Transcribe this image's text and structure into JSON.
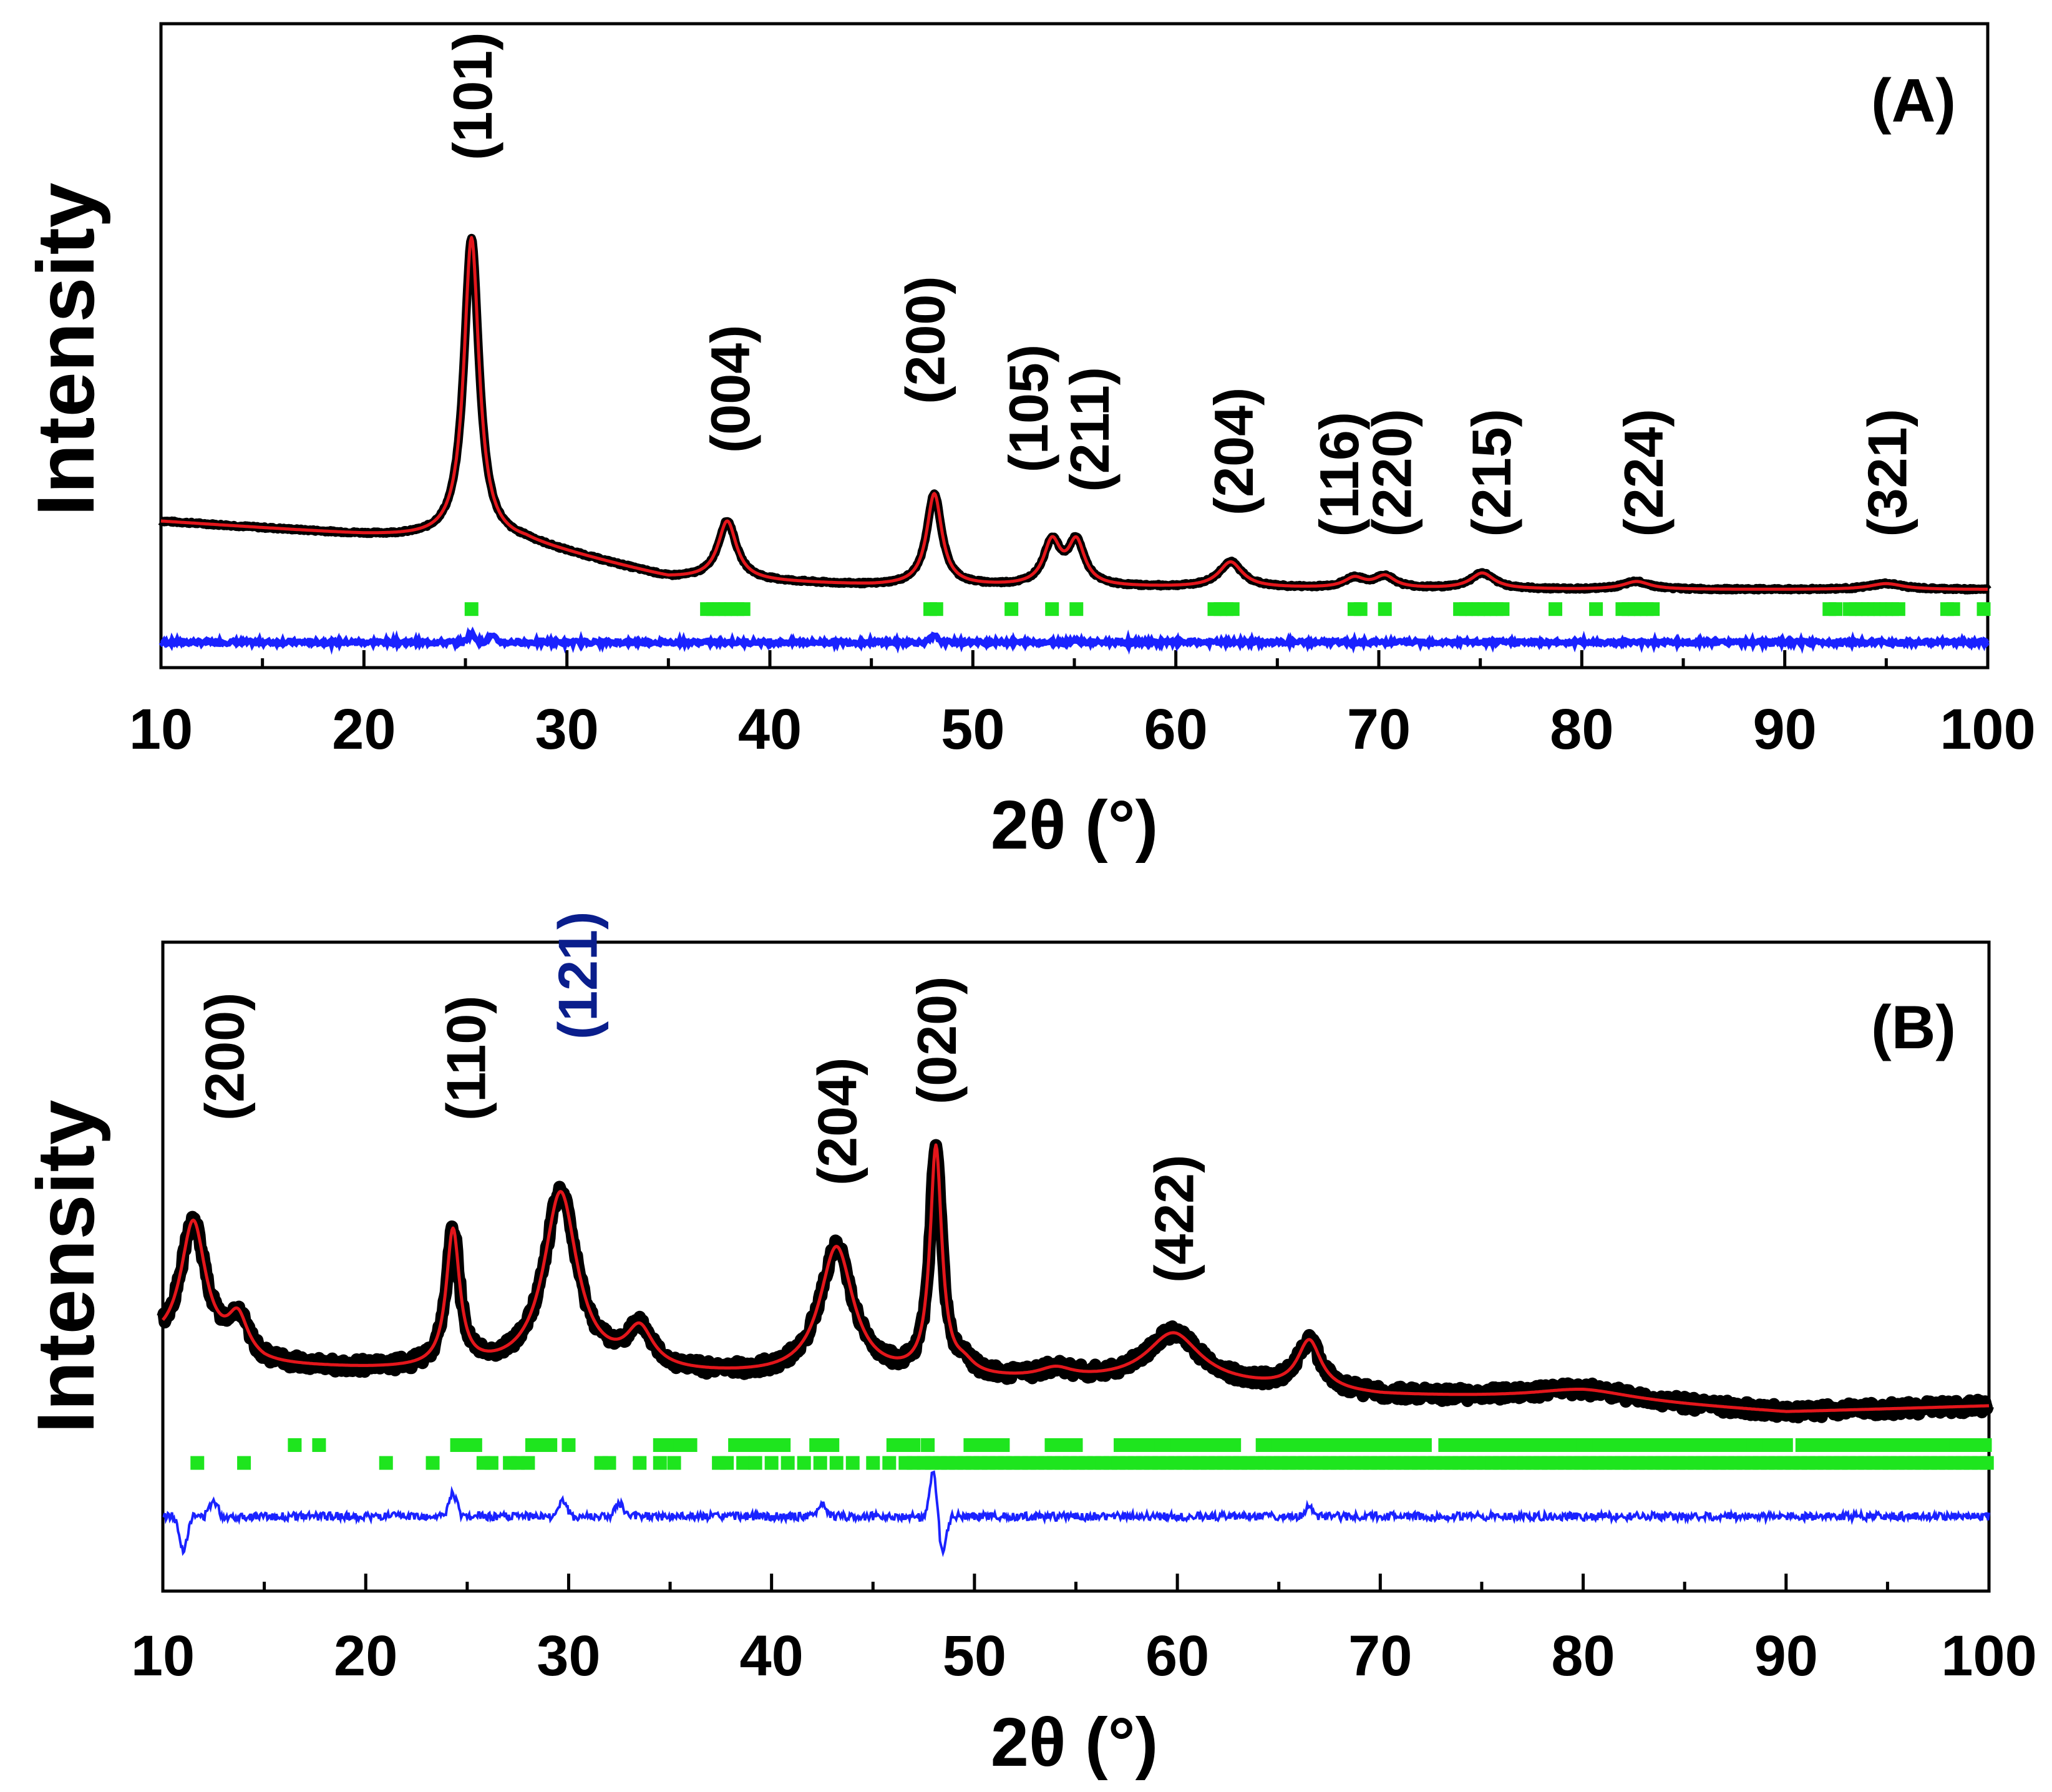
{
  "chart_data": [
    {
      "type": "line",
      "panel_label": "(A)",
      "xlabel": "2θ (°)",
      "ylabel": "Intensity",
      "xlim": [
        10,
        100
      ],
      "ylim": [
        -0.4,
        2.9
      ],
      "x_ticks": [
        10,
        20,
        30,
        40,
        50,
        60,
        70,
        80,
        90,
        100
      ],
      "background": [
        [
          10,
          0.35
        ],
        [
          20,
          0.28
        ],
        [
          28,
          0.24
        ],
        [
          35,
          0.06
        ],
        [
          45,
          0.02
        ],
        [
          60,
          0.01
        ],
        [
          80,
          0.0
        ],
        [
          100,
          0.0
        ]
      ],
      "peaks": [
        {
          "hkl": "(101)",
          "pos": 25.3,
          "height": 1.55,
          "width": 0.45
        },
        {
          "hkl": "(004)",
          "pos": 37.9,
          "height": 0.3,
          "width": 0.55
        },
        {
          "hkl": "(200)",
          "pos": 48.1,
          "height": 0.47,
          "width": 0.45
        },
        {
          "hkl": "(105)",
          "pos": 53.9,
          "height": 0.22,
          "width": 0.5
        },
        {
          "hkl": "(211)",
          "pos": 55.1,
          "height": 0.22,
          "width": 0.5
        },
        {
          "hkl": "(204)",
          "pos": 62.7,
          "height": 0.13,
          "width": 0.7
        },
        {
          "hkl": "(116)",
          "pos": 68.8,
          "height": 0.05,
          "width": 0.6
        },
        {
          "hkl": "(220)",
          "pos": 70.3,
          "height": 0.06,
          "width": 0.6
        },
        {
          "hkl": "(215)",
          "pos": 75.1,
          "height": 0.08,
          "width": 0.7
        },
        {
          "hkl": "(224)",
          "pos": 82.7,
          "height": 0.04,
          "width": 0.8
        },
        {
          "hkl": "(321)",
          "pos": 95.0,
          "height": 0.03,
          "width": 1.0
        }
      ],
      "labels": [
        {
          "text": "(101)",
          "x": 25.3,
          "y": 2.2,
          "color": "#000000"
        },
        {
          "text": "(004)",
          "x": 38.0,
          "y": 0.7,
          "color": "#000000"
        },
        {
          "text": "(200)",
          "x": 47.6,
          "y": 0.95,
          "color": "#000000"
        },
        {
          "text": "(105)",
          "x": 52.7,
          "y": 0.6,
          "color": "#000000"
        },
        {
          "text": "(211)",
          "x": 55.7,
          "y": 0.5,
          "color": "#000000"
        },
        {
          "text": "(204)",
          "x": 62.8,
          "y": 0.38,
          "color": "#000000"
        },
        {
          "text": "(116)",
          "x": 68.0,
          "y": 0.27,
          "color": "#000000"
        },
        {
          "text": "(220)",
          "x": 70.6,
          "y": 0.27,
          "color": "#000000"
        },
        {
          "text": "(215)",
          "x": 75.5,
          "y": 0.27,
          "color": "#000000"
        },
        {
          "text": "(224)",
          "x": 83.0,
          "y": 0.27,
          "color": "#000000"
        },
        {
          "text": "(321)",
          "x": 95.0,
          "y": 0.27,
          "color": "#000000"
        }
      ],
      "bragg_rows": [
        {
          "y": -0.1,
          "positions": [
            25.3,
            36.9,
            37.2,
            37.5,
            37.8,
            38.1,
            38.4,
            38.7,
            47.9,
            48.2,
            51.9,
            53.9,
            55.1,
            61.9,
            62.2,
            62.5,
            62.8,
            68.8,
            69.1,
            70.3,
            74.0,
            74.3,
            74.6,
            74.9,
            75.2,
            75.5,
            75.8,
            76.1,
            78.7,
            80.7,
            82.0,
            82.3,
            82.6,
            82.9,
            83.2,
            83.5,
            92.2,
            92.5,
            93.2,
            93.5,
            93.8,
            94.1,
            94.4,
            94.7,
            95.0,
            95.3,
            95.6,
            98.0,
            98.3,
            99.8
          ]
        }
      ],
      "difference_offset": -0.27,
      "difference_amplitude": 0.02,
      "difference_features": [
        [
          25.3,
          0.04
        ],
        [
          26.3,
          0.03
        ],
        [
          48.1,
          0.03
        ],
        [
          55.0,
          0.01
        ]
      ]
    },
    {
      "type": "line",
      "panel_label": "(B)",
      "xlabel": "2θ (°)",
      "ylabel": "Intensity",
      "xlim": [
        10,
        100
      ],
      "ylim": [
        -0.55,
        1.45
      ],
      "x_ticks": [
        10,
        20,
        30,
        40,
        50,
        60,
        70,
        80,
        90,
        100
      ],
      "background": [
        [
          10,
          0.2
        ],
        [
          15,
          0.14
        ],
        [
          20,
          0.13
        ],
        [
          30,
          0.12
        ],
        [
          45,
          0.1
        ],
        [
          60,
          0.09
        ],
        [
          70,
          0.05
        ],
        [
          80,
          0.04
        ],
        [
          90,
          0.0
        ],
        [
          100,
          0.02
        ]
      ],
      "peaks": [
        {
          "hkl": "(200)",
          "pos": 11.5,
          "height": 0.4,
          "width": 0.75
        },
        {
          "hkl": "",
          "pos": 13.7,
          "height": 0.12,
          "width": 0.6
        },
        {
          "hkl": "(110)",
          "pos": 24.3,
          "height": 0.42,
          "width": 0.4
        },
        {
          "hkl": "(121)",
          "pos": 29.6,
          "height": 0.55,
          "width": 1.0
        },
        {
          "hkl": "",
          "pos": 33.5,
          "height": 0.12,
          "width": 0.8
        },
        {
          "hkl": "(204)",
          "pos": 43.2,
          "height": 0.4,
          "width": 1.0
        },
        {
          "hkl": "(020)",
          "pos": 48.1,
          "height": 0.7,
          "width": 0.35
        },
        {
          "hkl": "",
          "pos": 49.5,
          "height": 0.03,
          "width": 0.6
        },
        {
          "hkl": "",
          "pos": 54.0,
          "height": 0.03,
          "width": 1.0
        },
        {
          "hkl": "(422)",
          "pos": 59.8,
          "height": 0.15,
          "width": 1.6
        },
        {
          "hkl": "",
          "pos": 66.5,
          "height": 0.15,
          "width": 0.7
        },
        {
          "hkl": "",
          "pos": 80.0,
          "height": 0.03,
          "width": 3.0
        }
      ],
      "labels": [
        {
          "text": "(200)",
          "x": 13.0,
          "y": 0.9,
          "color": "#000000"
        },
        {
          "text": "(110)",
          "x": 24.9,
          "y": 0.9,
          "color": "#000000"
        },
        {
          "text": "(121)",
          "x": 30.4,
          "y": 1.15,
          "color": "#0a1e8c"
        },
        {
          "text": "(204)",
          "x": 43.2,
          "y": 0.7,
          "color": "#000000"
        },
        {
          "text": "(020)",
          "x": 48.1,
          "y": 0.95,
          "color": "#000000"
        },
        {
          "text": "(422)",
          "x": 59.8,
          "y": 0.4,
          "color": "#000000"
        }
      ],
      "bragg_rows": [
        {
          "y": -0.1,
          "positions": [
            16.5,
            17.7,
            24.5,
            25.0,
            25.4,
            28.2,
            28.6,
            29.1,
            30.0,
            34.5,
            35.0,
            35.5,
            36.0,
            38.2,
            38.6,
            39.0,
            39.4,
            39.8,
            40.2,
            40.6,
            42.2,
            42.6,
            43.0,
            46.0,
            46.5,
            47.0,
            47.7,
            49.8,
            50.2,
            50.6,
            51.0,
            51.4,
            53.8,
            54.2,
            54.6,
            55.0,
            57.2,
            57.6,
            58.0,
            58.4,
            58.8,
            59.2,
            59.6,
            60.0,
            60.4,
            60.8,
            61.2,
            61.6,
            62.0,
            62.4,
            62.8,
            64.2,
            64.6,
            65.0,
            65.4,
            65.8,
            66.2,
            66.6,
            67.0,
            67.4,
            67.8,
            68.2,
            68.6,
            69.0,
            69.4,
            69.8,
            70.2,
            70.6,
            71.0,
            71.4,
            71.8,
            72.2,
            73.2,
            73.6,
            74.0,
            74.4,
            74.8,
            75.2,
            75.6,
            76.0,
            76.4,
            76.8,
            77.2,
            77.6,
            78.0,
            78.4,
            78.8,
            79.2,
            79.6,
            80.0,
            80.4,
            80.8,
            81.2,
            81.6,
            82.0,
            82.4,
            82.8,
            83.2,
            83.6,
            84.0,
            84.4,
            84.8,
            85.2,
            85.6,
            86.0,
            86.4,
            86.8,
            87.2,
            87.6,
            88.0,
            88.4,
            88.8,
            89.2,
            89.6,
            90.0,
            90.8,
            91.2,
            91.6,
            92.0,
            92.4,
            92.8,
            93.2,
            93.6,
            94.0,
            94.4,
            94.8,
            95.2,
            95.6,
            96.0,
            96.4,
            96.8,
            97.2,
            97.6,
            98.0,
            98.4,
            98.8,
            99.4,
            99.8
          ]
        },
        {
          "y": -0.155,
          "positions": [
            11.7,
            14.0,
            21.0,
            23.3,
            25.8,
            26.2,
            27.1,
            27.5,
            28.0,
            31.6,
            32.0,
            33.5,
            34.5,
            35.2,
            37.4,
            37.8,
            38.6,
            39.2,
            40.0,
            40.8,
            41.6,
            42.4,
            43.2,
            44.0,
            45.0,
            45.8,
            46.6,
            47.0,
            47.5,
            47.9,
            48.3,
            48.7,
            49.1,
            49.5,
            49.9,
            50.3,
            50.7,
            51.1,
            51.5,
            51.9,
            52.3,
            52.7,
            53.1,
            53.5,
            53.9,
            54.3,
            54.7,
            55.1,
            55.5,
            55.9,
            56.3,
            56.7,
            57.1,
            57.5,
            57.9,
            58.3,
            58.7,
            59.1,
            59.5,
            59.9,
            60.3,
            60.7,
            61.1,
            61.5,
            61.9,
            62.3,
            62.7,
            63.1,
            63.5,
            63.9,
            64.3,
            64.7,
            65.1,
            65.5,
            65.9,
            66.3,
            66.7,
            67.1,
            67.5,
            67.9,
            68.3,
            68.7,
            69.1,
            69.5,
            69.9,
            70.3,
            70.7,
            71.1,
            71.5,
            71.9,
            72.3,
            72.7,
            73.1,
            73.5,
            73.9,
            74.3,
            74.7,
            75.1,
            75.5,
            75.9,
            76.3,
            76.7,
            77.1,
            77.5,
            77.9,
            78.3,
            78.7,
            79.1,
            79.5,
            79.9,
            80.3,
            80.7,
            81.1,
            81.5,
            81.9,
            82.3,
            82.7,
            83.1,
            83.5,
            83.9,
            84.3,
            84.7,
            85.1,
            85.5,
            85.9,
            86.3,
            86.7,
            87.1,
            87.5,
            87.9,
            88.3,
            88.7,
            89.1,
            89.5,
            89.9,
            90.3,
            90.7,
            91.1,
            91.5,
            91.9,
            92.3,
            92.7,
            93.1,
            93.5,
            93.9,
            94.3,
            94.7,
            95.1,
            95.5,
            95.9,
            96.3,
            96.7,
            97.1,
            97.5,
            97.9,
            98.3,
            98.7,
            99.1,
            99.5,
            99.9
          ]
        }
      ],
      "difference_offset": -0.32,
      "difference_amplitude": 0.025,
      "difference_features": [
        [
          11.0,
          -0.1
        ],
        [
          12.5,
          0.05
        ],
        [
          24.3,
          0.07
        ],
        [
          29.7,
          0.05
        ],
        [
          32.5,
          0.04
        ],
        [
          42.5,
          0.04
        ],
        [
          48.0,
          0.14
        ],
        [
          48.4,
          -0.12
        ],
        [
          66.5,
          0.03
        ]
      ]
    }
  ]
}
